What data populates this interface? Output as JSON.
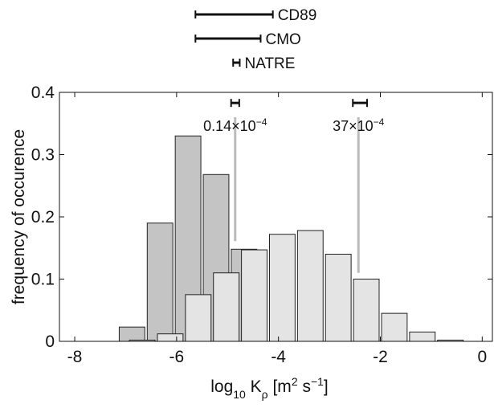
{
  "chart_data": {
    "type": "histogram",
    "ylabel": "frequency of occurence",
    "xlabel_parts": [
      {
        "text": "log"
      },
      {
        "text": "10",
        "shift": "sub"
      },
      {
        "text": " K"
      },
      {
        "text": "ρ",
        "shift": "sub"
      },
      {
        "text": " [m"
      },
      {
        "text": "2",
        "shift": "super"
      },
      {
        "text": " s"
      },
      {
        "text": "−1",
        "shift": "super"
      },
      {
        "text": "]"
      }
    ],
    "xlim": [
      -8.3,
      0.2
    ],
    "xticks": [
      -8,
      -6,
      -4,
      -2,
      0
    ],
    "ylim": [
      0,
      0.4
    ],
    "yticks": [
      0,
      0.1,
      0.2,
      0.3,
      0.4
    ],
    "series": [
      {
        "color": "#c4c4c4",
        "bins": [
          -7.15,
          -6.6,
          -6.05,
          -5.5,
          -4.95,
          -4.4
        ],
        "values": [
          0.023,
          0.19,
          0.33,
          0.268,
          0.148
        ]
      },
      {
        "color": "#e4e4e4",
        "bins": [
          -6.95,
          -6.4,
          -5.85,
          -5.3,
          -4.75,
          -4.2,
          -3.65,
          -3.1,
          -2.55,
          -2.0,
          -1.45,
          -0.9,
          -0.35
        ],
        "values": [
          0.002,
          0.012,
          0.075,
          0.11,
          0.147,
          0.172,
          0.178,
          0.14,
          0.1,
          0.045,
          0.015,
          0.002
        ]
      }
    ],
    "ranges": [
      {
        "name": "CD89",
        "lo": -5.63,
        "hi": -4.11
      },
      {
        "name": "CMO",
        "lo": -5.63,
        "hi": -4.35
      },
      {
        "name": "NATRE",
        "lo": -4.89,
        "hi": -4.76
      }
    ],
    "annotations": [
      {
        "text": "0.14×10",
        "exponent": "−4",
        "x": -4.85,
        "lo": -4.93,
        "hi": -4.77,
        "line_top": 0.36,
        "line_bottom": 0.161
      },
      {
        "text": "37×10",
        "exponent": "−4",
        "x": -2.43,
        "lo": -2.54,
        "hi": -2.26,
        "line_top": 0.36,
        "line_bottom": 0.11
      }
    ]
  }
}
